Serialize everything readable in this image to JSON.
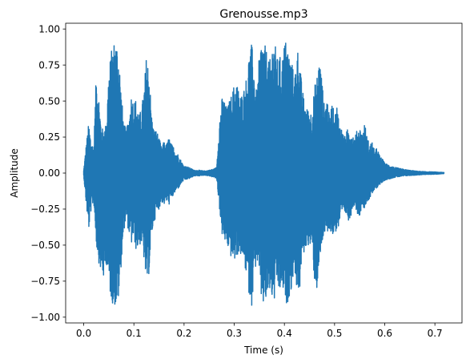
{
  "chart_data": {
    "type": "line",
    "title": "Grenousse.mp3",
    "xlabel": "Time (s)",
    "ylabel": "Amplitude",
    "xlim": [
      -0.036,
      0.754
    ],
    "ylim": [
      -1.04,
      1.04
    ],
    "x_ticks": [
      0.0,
      0.1,
      0.2,
      0.3,
      0.4,
      0.5,
      0.6,
      0.7
    ],
    "x_tick_labels": [
      "0.0",
      "0.1",
      "0.2",
      "0.3",
      "0.4",
      "0.5",
      "0.6",
      "0.7"
    ],
    "y_ticks": [
      -1.0,
      -0.75,
      -0.5,
      -0.25,
      0.0,
      0.25,
      0.5,
      0.75,
      1.0
    ],
    "y_tick_labels": [
      "−1.00",
      "−0.75",
      "−0.50",
      "−0.25",
      "0.00",
      "0.25",
      "0.50",
      "0.75",
      "1.00"
    ],
    "grid": false,
    "series": [
      {
        "color": "#1f77b4",
        "envelope_time": [
          0.0,
          0.005,
          0.01,
          0.015,
          0.02,
          0.025,
          0.03,
          0.035,
          0.04,
          0.045,
          0.05,
          0.055,
          0.06,
          0.065,
          0.07,
          0.075,
          0.08,
          0.085,
          0.09,
          0.095,
          0.1,
          0.105,
          0.11,
          0.115,
          0.12,
          0.125,
          0.13,
          0.135,
          0.14,
          0.145,
          0.15,
          0.155,
          0.16,
          0.165,
          0.17,
          0.175,
          0.18,
          0.185,
          0.19,
          0.195,
          0.2,
          0.21,
          0.22,
          0.23,
          0.24,
          0.25,
          0.26,
          0.265,
          0.27,
          0.275,
          0.28,
          0.285,
          0.29,
          0.295,
          0.3,
          0.305,
          0.31,
          0.315,
          0.32,
          0.325,
          0.33,
          0.335,
          0.34,
          0.345,
          0.35,
          0.355,
          0.36,
          0.365,
          0.37,
          0.375,
          0.38,
          0.385,
          0.39,
          0.395,
          0.4,
          0.405,
          0.41,
          0.415,
          0.42,
          0.425,
          0.43,
          0.435,
          0.44,
          0.445,
          0.45,
          0.455,
          0.46,
          0.465,
          0.47,
          0.475,
          0.48,
          0.485,
          0.49,
          0.495,
          0.5,
          0.505,
          0.51,
          0.515,
          0.52,
          0.525,
          0.53,
          0.535,
          0.54,
          0.545,
          0.55,
          0.555,
          0.56,
          0.565,
          0.57,
          0.575,
          0.58,
          0.585,
          0.59,
          0.595,
          0.6,
          0.62,
          0.64,
          0.66,
          0.68,
          0.7,
          0.718
        ],
        "envelope_max": [
          0.02,
          0.2,
          0.35,
          0.22,
          0.18,
          0.7,
          0.55,
          0.32,
          0.3,
          0.35,
          0.72,
          0.85,
          0.92,
          0.93,
          0.85,
          0.55,
          0.35,
          0.3,
          0.38,
          0.55,
          0.5,
          0.52,
          0.4,
          0.45,
          0.58,
          0.82,
          0.75,
          0.42,
          0.3,
          0.3,
          0.25,
          0.18,
          0.22,
          0.2,
          0.25,
          0.2,
          0.18,
          0.15,
          0.12,
          0.08,
          0.05,
          0.04,
          0.02,
          0.02,
          0.015,
          0.02,
          0.03,
          0.04,
          0.35,
          0.52,
          0.52,
          0.45,
          0.5,
          0.55,
          0.62,
          0.65,
          0.55,
          0.55,
          0.6,
          0.68,
          0.85,
          0.9,
          0.72,
          0.55,
          0.82,
          0.95,
          0.9,
          0.85,
          0.75,
          0.9,
          0.94,
          0.8,
          0.82,
          0.78,
          0.92,
          0.93,
          0.82,
          0.78,
          0.65,
          0.9,
          0.8,
          0.6,
          0.5,
          0.45,
          0.45,
          0.42,
          0.6,
          0.68,
          0.82,
          0.65,
          0.45,
          0.55,
          0.38,
          0.5,
          0.4,
          0.48,
          0.35,
          0.3,
          0.25,
          0.3,
          0.32,
          0.28,
          0.25,
          0.3,
          0.32,
          0.28,
          0.35,
          0.25,
          0.2,
          0.22,
          0.15,
          0.18,
          0.12,
          0.1,
          0.07,
          0.04,
          0.025,
          0.015,
          0.01,
          0.008,
          0.004
        ],
        "envelope_min": [
          -0.02,
          -0.22,
          -0.4,
          -0.25,
          -0.2,
          -0.5,
          -0.62,
          -0.7,
          -0.75,
          -0.62,
          -0.8,
          -0.88,
          -0.93,
          -0.93,
          -0.88,
          -0.62,
          -0.4,
          -0.32,
          -0.42,
          -0.5,
          -0.45,
          -0.55,
          -0.5,
          -0.5,
          -0.6,
          -0.8,
          -0.7,
          -0.45,
          -0.35,
          -0.28,
          -0.25,
          -0.2,
          -0.22,
          -0.2,
          -0.22,
          -0.18,
          -0.15,
          -0.12,
          -0.1,
          -0.07,
          -0.05,
          -0.04,
          -0.02,
          -0.02,
          -0.015,
          -0.02,
          -0.03,
          -0.04,
          -0.22,
          -0.42,
          -0.48,
          -0.5,
          -0.55,
          -0.6,
          -0.62,
          -0.58,
          -0.55,
          -0.6,
          -0.62,
          -0.75,
          -0.85,
          -0.92,
          -0.72,
          -0.6,
          -0.75,
          -0.92,
          -0.93,
          -0.9,
          -0.82,
          -0.88,
          -0.9,
          -0.78,
          -0.85,
          -0.8,
          -0.88,
          -0.92,
          -0.85,
          -0.8,
          -0.65,
          -0.82,
          -0.85,
          -0.6,
          -0.55,
          -0.5,
          -0.5,
          -0.55,
          -0.75,
          -0.82,
          -0.65,
          -0.5,
          -0.42,
          -0.48,
          -0.38,
          -0.45,
          -0.42,
          -0.4,
          -0.38,
          -0.3,
          -0.28,
          -0.3,
          -0.35,
          -0.25,
          -0.22,
          -0.28,
          -0.3,
          -0.22,
          -0.25,
          -0.2,
          -0.18,
          -0.15,
          -0.12,
          -0.1,
          -0.08,
          -0.07,
          -0.05,
          -0.03,
          -0.02,
          -0.015,
          -0.01,
          -0.008,
          -0.004
        ]
      }
    ]
  }
}
